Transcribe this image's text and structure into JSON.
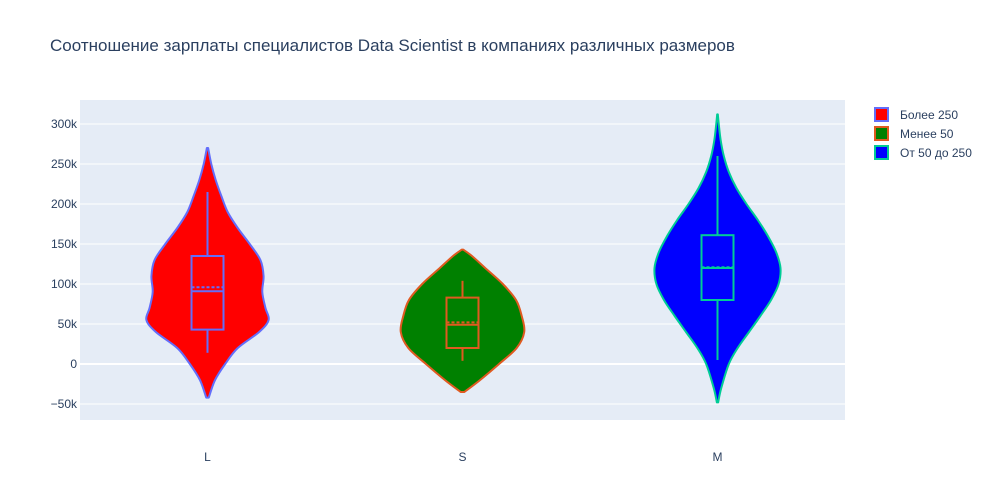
{
  "chart_data": {
    "type": "violin",
    "title": "Соотношение зарплаты специалистов Data Scientist в компаниях различных размеров",
    "xlabel": "",
    "ylabel": "",
    "categories": [
      "L",
      "S",
      "M"
    ],
    "ylim": [
      -70000,
      330000
    ],
    "yticks": [
      -50000,
      0,
      50000,
      100000,
      150000,
      200000,
      250000,
      300000
    ],
    "ytick_labels": [
      "−50k",
      "0",
      "50k",
      "100k",
      "150k",
      "200k",
      "250k",
      "300k"
    ],
    "grid": true,
    "legend_position": "top-right",
    "series": [
      {
        "name": "Более 250",
        "category": "L",
        "fill": "#ff0000",
        "line": "#636efa",
        "range": [
          -42000,
          270000
        ],
        "min": 14000,
        "q1": 43000,
        "median": 91000,
        "mean": 96000,
        "q3": 135000,
        "max": 215000,
        "density": [
          [
            -42000,
            0.02
          ],
          [
            -20000,
            0.12
          ],
          [
            0,
            0.28
          ],
          [
            20000,
            0.48
          ],
          [
            40000,
            0.82
          ],
          [
            55000,
            0.97
          ],
          [
            70000,
            0.92
          ],
          [
            90000,
            0.87
          ],
          [
            110000,
            0.89
          ],
          [
            130000,
            0.84
          ],
          [
            150000,
            0.67
          ],
          [
            170000,
            0.48
          ],
          [
            190000,
            0.32
          ],
          [
            210000,
            0.22
          ],
          [
            230000,
            0.13
          ],
          [
            250000,
            0.06
          ],
          [
            270000,
            0.01
          ]
        ]
      },
      {
        "name": "Менее 50",
        "category": "S",
        "fill": "#008000",
        "line": "#e05a20",
        "range": [
          -35000,
          143000
        ],
        "min": 4000,
        "q1": 20000,
        "median": 49000,
        "mean": 52000,
        "q3": 83000,
        "max": 104000,
        "density": [
          [
            -35000,
            0.03
          ],
          [
            -20000,
            0.28
          ],
          [
            0,
            0.58
          ],
          [
            20000,
            0.86
          ],
          [
            40000,
            0.98
          ],
          [
            60000,
            0.94
          ],
          [
            80000,
            0.85
          ],
          [
            100000,
            0.64
          ],
          [
            120000,
            0.36
          ],
          [
            135000,
            0.15
          ],
          [
            143000,
            0.01
          ]
        ]
      },
      {
        "name": "От 50 до 250",
        "category": "M",
        "fill": "#0000ff",
        "line": "#00cc96",
        "range": [
          -48000,
          312000
        ],
        "min": 5000,
        "q1": 80000,
        "median": 120000,
        "mean": 121000,
        "q3": 161000,
        "max": 260000,
        "density": [
          [
            -48000,
            0.01
          ],
          [
            -30000,
            0.06
          ],
          [
            0,
            0.18
          ],
          [
            20000,
            0.32
          ],
          [
            40000,
            0.5
          ],
          [
            60000,
            0.68
          ],
          [
            80000,
            0.85
          ],
          [
            100000,
            0.97
          ],
          [
            120000,
            1.0
          ],
          [
            140000,
            0.93
          ],
          [
            160000,
            0.8
          ],
          [
            180000,
            0.64
          ],
          [
            200000,
            0.46
          ],
          [
            220000,
            0.3
          ],
          [
            240000,
            0.18
          ],
          [
            260000,
            0.1
          ],
          [
            280000,
            0.05
          ],
          [
            300000,
            0.02
          ],
          [
            312000,
            0.005
          ]
        ]
      }
    ]
  }
}
